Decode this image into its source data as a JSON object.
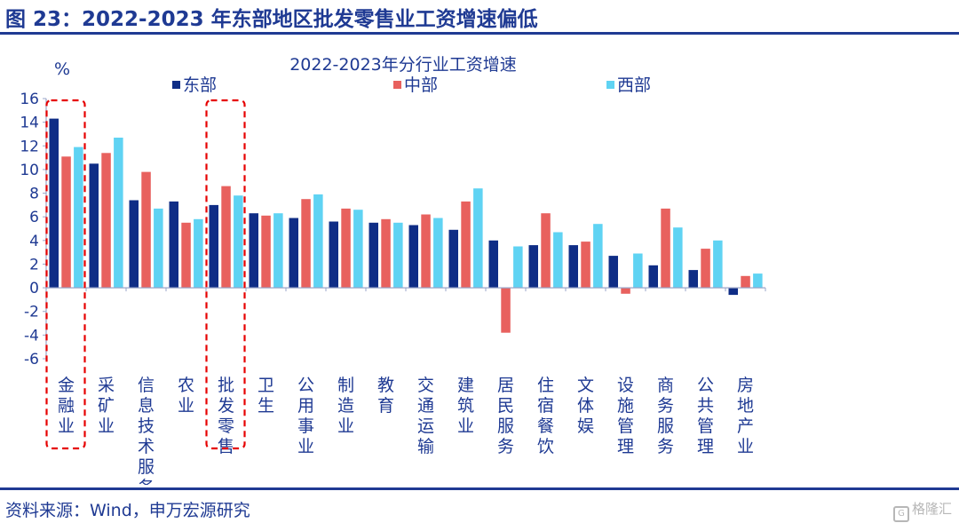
{
  "figure": {
    "title": "图 23：2022-2023 年东部地区批发零售业工资增速偏低",
    "source": "资料来源：Wind，申万宏源研究",
    "watermark": "格隆汇"
  },
  "colors": {
    "east": "#0f2d86",
    "central": "#e8615e",
    "west": "#5fd3f3",
    "text": "#1f3a93",
    "highlight": "#e60000"
  },
  "chart_data": {
    "type": "bar",
    "title": "2022-2023年分行业工资增速",
    "ylabel": "%",
    "xlabel": "",
    "ylim": [
      -6,
      16
    ],
    "yticks": [
      16,
      14,
      12,
      10,
      8,
      6,
      4,
      2,
      0,
      -2,
      -4,
      -6
    ],
    "legend_position": "top",
    "grid": false,
    "categories": [
      "金融业",
      "采矿业",
      "信息技术服务",
      "农业",
      "批发零售",
      "卫生",
      "公用事业",
      "制造业",
      "教育",
      "交通运输",
      "建筑业",
      "居民服务",
      "住宿餐饮",
      "文体娱",
      "设施管理",
      "商务服务",
      "公共管理",
      "房地产业"
    ],
    "series": [
      {
        "name": "东部",
        "color_key": "east",
        "values": [
          14.3,
          10.5,
          7.4,
          7.3,
          7.0,
          6.3,
          5.9,
          5.6,
          5.5,
          5.3,
          4.9,
          4.0,
          3.6,
          3.6,
          2.7,
          1.9,
          1.5,
          -0.6
        ]
      },
      {
        "name": "中部",
        "color_key": "central",
        "values": [
          11.1,
          11.4,
          9.8,
          5.5,
          8.6,
          6.1,
          7.5,
          6.7,
          5.8,
          6.2,
          7.3,
          -3.8,
          6.3,
          3.9,
          -0.5,
          6.7,
          3.3,
          1.0
        ]
      },
      {
        "name": "西部",
        "color_key": "west",
        "values": [
          11.9,
          12.7,
          6.7,
          5.8,
          7.8,
          6.3,
          7.9,
          6.6,
          5.5,
          5.9,
          8.4,
          3.5,
          4.7,
          5.4,
          2.9,
          5.1,
          4.0,
          1.2
        ]
      }
    ],
    "highlighted_categories": [
      "金融业",
      "批发零售"
    ]
  }
}
